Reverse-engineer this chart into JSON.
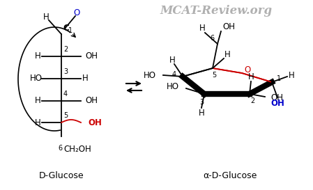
{
  "title": "MCAT-Review.org",
  "title_color": "#b0b0b0",
  "label_left": "D-Glucose",
  "label_right": "α-D-Glucose",
  "bg_color": "#ffffff",
  "black": "#000000",
  "red": "#cc0000",
  "blue": "#0000cc"
}
